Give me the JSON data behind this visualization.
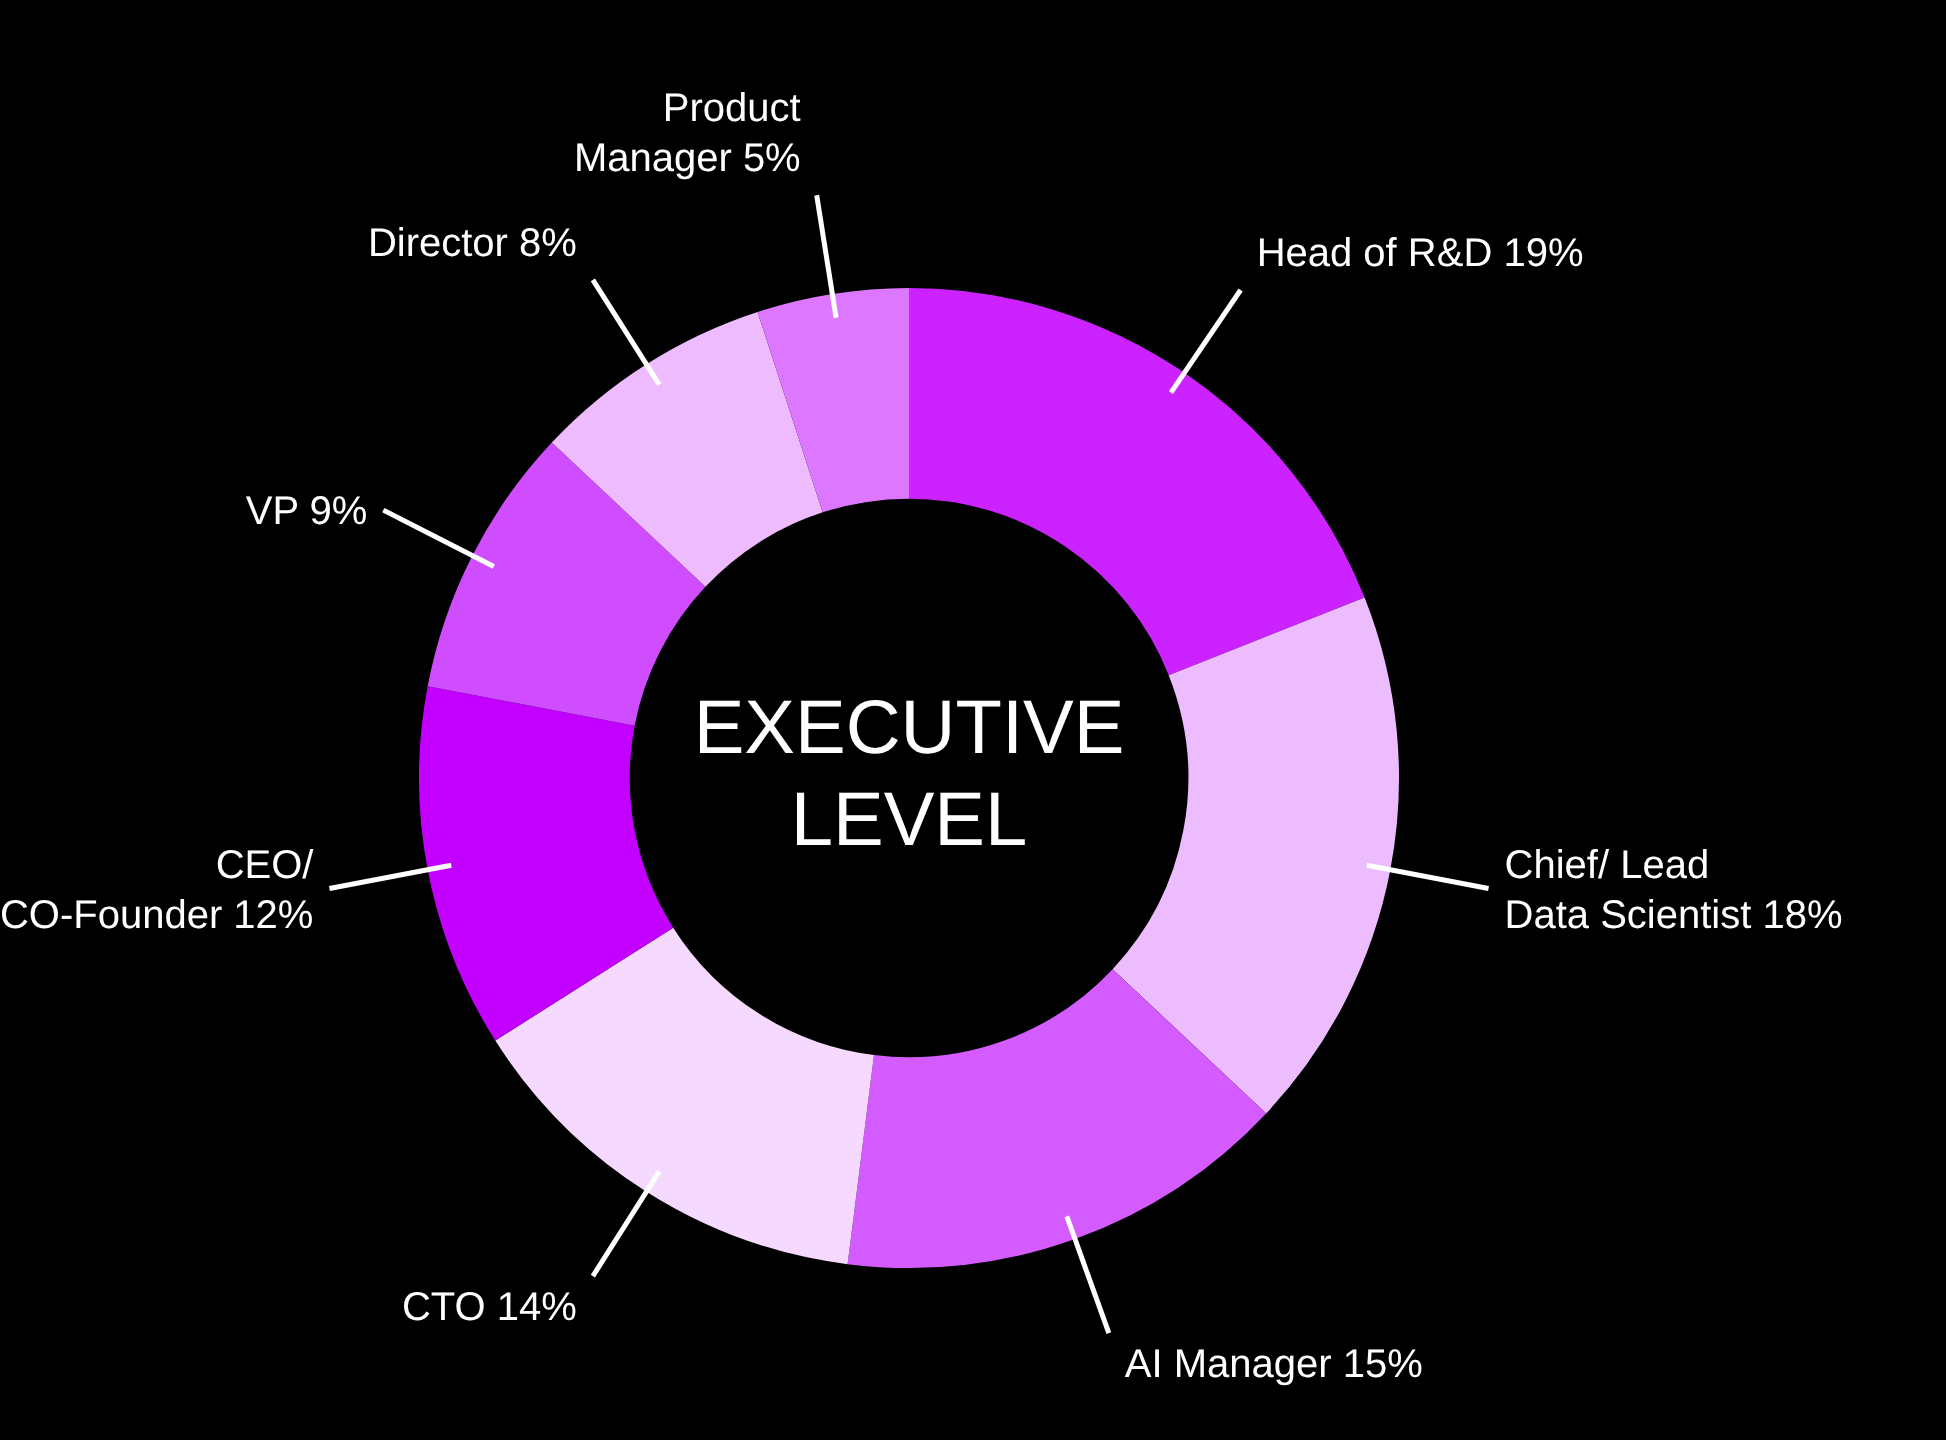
{
  "chart_data": {
    "type": "donut",
    "title": "EXECUTIVE LEVEL",
    "categories": [
      "Head of R&D",
      "Chief/ Lead Data Scientist",
      "AI Manager",
      "CTO",
      "CEO/ CO-Founder",
      "VP",
      "Director",
      "Product Manager"
    ],
    "values": [
      19,
      18,
      15,
      14,
      12,
      9,
      8,
      5
    ],
    "value_labels": [
      "19%",
      "18%",
      "15%",
      "14%",
      "12%",
      "9%",
      "8%",
      "5%"
    ],
    "colors": [
      "#cc22ff",
      "#ecbcff",
      "#d45cff",
      "#f5d9ff",
      "#c300ff",
      "#cf4cff",
      "#eebbff",
      "#dd77ff"
    ],
    "legend": false
  }
}
